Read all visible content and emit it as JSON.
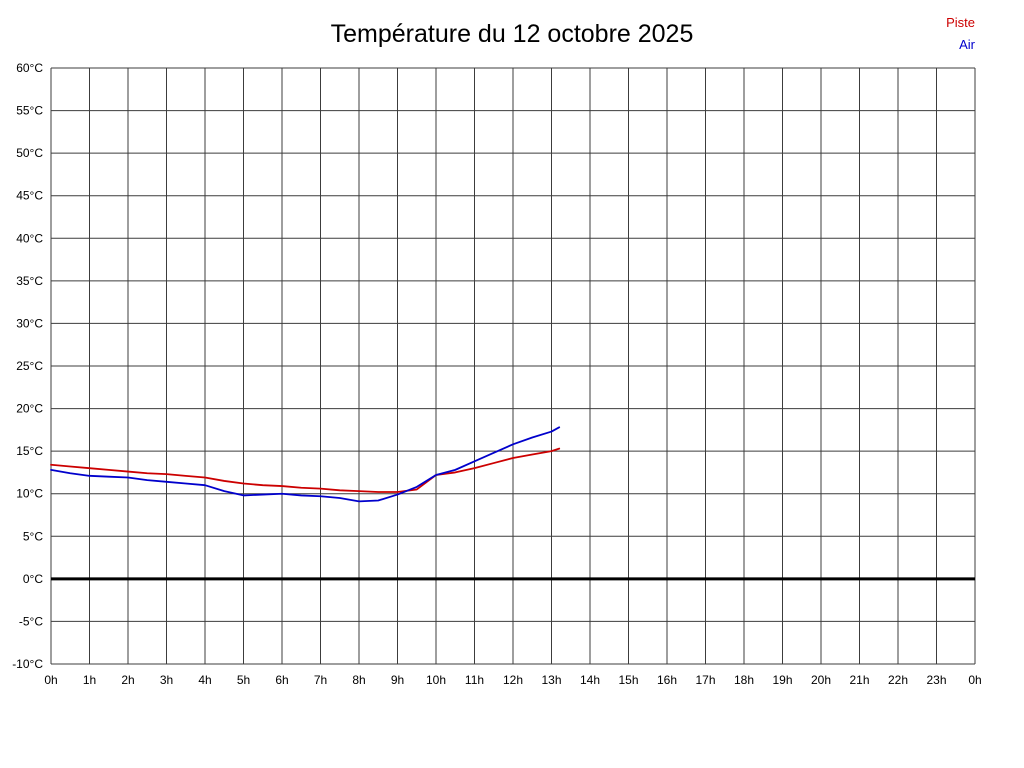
{
  "title": "Température du 12 octobre 2025",
  "legend": {
    "piste": {
      "label": "Piste",
      "color": "#cc0000"
    },
    "air": {
      "label": "Air",
      "color": "#0000cc"
    }
  },
  "chart_data": {
    "type": "line",
    "title": "Température du 12 octobre 2025",
    "xlabel": "",
    "ylabel": "",
    "xlim": [
      0,
      24
    ],
    "ylim": [
      -10,
      60
    ],
    "y_step": 5,
    "grid": true,
    "legend_position": "top-right",
    "x_ticks": [
      "0h",
      "1h",
      "2h",
      "3h",
      "4h",
      "5h",
      "6h",
      "7h",
      "8h",
      "9h",
      "10h",
      "11h",
      "12h",
      "13h",
      "14h",
      "15h",
      "16h",
      "17h",
      "18h",
      "19h",
      "20h",
      "21h",
      "22h",
      "23h",
      "0h"
    ],
    "y_ticks": [
      "-10°C",
      "-5°C",
      "0°C",
      "5°C",
      "10°C",
      "15°C",
      "20°C",
      "25°C",
      "30°C",
      "35°C",
      "40°C",
      "45°C",
      "50°C",
      "55°C",
      "60°C"
    ],
    "zero_line": {
      "value": 0,
      "color": "#000000",
      "width": 3
    },
    "series": [
      {
        "name": "Piste",
        "color": "#cc0000",
        "x": [
          0,
          0.5,
          1,
          1.5,
          2,
          2.5,
          3,
          3.5,
          4,
          4.5,
          5,
          5.5,
          6,
          6.5,
          7,
          7.5,
          8,
          8.5,
          9,
          9.5,
          10,
          10.5,
          11,
          11.5,
          12,
          12.5,
          13,
          13.2
        ],
        "values": [
          13.4,
          13.2,
          13.0,
          12.8,
          12.6,
          12.4,
          12.3,
          12.1,
          11.9,
          11.5,
          11.2,
          11.0,
          10.9,
          10.7,
          10.6,
          10.4,
          10.3,
          10.2,
          10.2,
          10.5,
          12.2,
          12.5,
          13.0,
          13.6,
          14.2,
          14.6,
          15.0,
          15.3
        ]
      },
      {
        "name": "Air",
        "color": "#0000cc",
        "x": [
          0,
          0.5,
          1,
          1.5,
          2,
          2.5,
          3,
          3.5,
          4,
          4.5,
          5,
          5.5,
          6,
          6.5,
          7,
          7.5,
          8,
          8.5,
          9,
          9.5,
          10,
          10.5,
          11,
          11.5,
          12,
          12.5,
          13,
          13.2
        ],
        "values": [
          12.8,
          12.4,
          12.1,
          12.0,
          11.9,
          11.6,
          11.4,
          11.2,
          11.0,
          10.3,
          9.8,
          9.9,
          10.0,
          9.8,
          9.7,
          9.5,
          9.1,
          9.2,
          9.9,
          10.8,
          12.2,
          12.8,
          13.8,
          14.8,
          15.8,
          16.6,
          17.3,
          17.8
        ]
      }
    ]
  }
}
